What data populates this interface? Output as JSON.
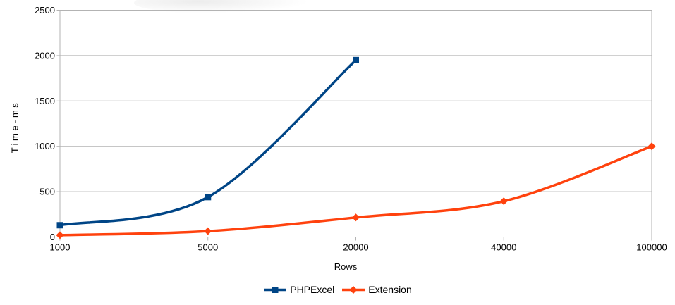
{
  "chart_data": {
    "type": "line",
    "title": "",
    "xlabel": "Rows",
    "ylabel": "Time-ms",
    "categories": [
      "1000",
      "5000",
      "20000",
      "40000",
      "100000"
    ],
    "y_ticks": [
      0,
      500,
      1000,
      1500,
      2000,
      2500
    ],
    "ylim": [
      0,
      2500
    ],
    "grid": "horizontal",
    "legend_position": "bottom",
    "smooth": true,
    "colors": {
      "grid": "#b3b3b3",
      "background": "#ffffff",
      "text": "#000000"
    },
    "series": [
      {
        "name": "PHPExcel",
        "color": "#004586",
        "marker": "square",
        "values": [
          130,
          440,
          1950
        ]
      },
      {
        "name": "Extension",
        "color": "#ff420e",
        "marker": "diamond",
        "values": [
          20,
          65,
          215,
          395,
          1000
        ]
      }
    ]
  }
}
